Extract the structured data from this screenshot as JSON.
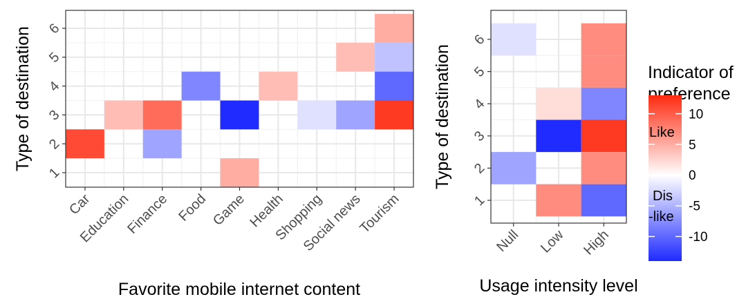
{
  "chart_data": [
    {
      "type": "heatmap",
      "xlabel": "Favorite mobile internet content",
      "ylabel": "Type of destination",
      "x_categories": [
        "Car",
        "Education",
        "Finance",
        "Food",
        "Game",
        "Health",
        "Shopping",
        "Social news",
        "Tourism"
      ],
      "y_categories": [
        "1",
        "2",
        "3",
        "4",
        "5",
        "6"
      ],
      "grid": true,
      "cells": [
        {
          "x": "Car",
          "y": "2",
          "value": 11
        },
        {
          "x": "Education",
          "y": "3",
          "value": 4
        },
        {
          "x": "Finance",
          "y": "3",
          "value": 9
        },
        {
          "x": "Finance",
          "y": "2",
          "value": -6
        },
        {
          "x": "Food",
          "y": "4",
          "value": -8
        },
        {
          "x": "Game",
          "y": "3",
          "value": -14
        },
        {
          "x": "Game",
          "y": "1",
          "value": 5
        },
        {
          "x": "Health",
          "y": "4",
          "value": 4
        },
        {
          "x": "Shopping",
          "y": "3",
          "value": -2
        },
        {
          "x": "Social news",
          "y": "5",
          "value": 4
        },
        {
          "x": "Social news",
          "y": "3",
          "value": -6
        },
        {
          "x": "Tourism",
          "y": "6",
          "value": 5
        },
        {
          "x": "Tourism",
          "y": "5",
          "value": -4
        },
        {
          "x": "Tourism",
          "y": "4",
          "value": -10
        },
        {
          "x": "Tourism",
          "y": "3",
          "value": 12
        }
      ]
    },
    {
      "type": "heatmap",
      "xlabel": "Usage intensity level",
      "ylabel": "Type of destination",
      "x_categories": [
        "Null",
        "Low",
        "High"
      ],
      "y_categories": [
        "1",
        "2",
        "3",
        "4",
        "5",
        "6"
      ],
      "grid": true,
      "cells": [
        {
          "x": "Null",
          "y": "6",
          "value": -2
        },
        {
          "x": "Null",
          "y": "2",
          "value": -6
        },
        {
          "x": "Low",
          "y": "4",
          "value": 2
        },
        {
          "x": "Low",
          "y": "3",
          "value": -14
        },
        {
          "x": "Low",
          "y": "1",
          "value": 7
        },
        {
          "x": "High",
          "y": "6",
          "value": 7
        },
        {
          "x": "High",
          "y": "5",
          "value": 7
        },
        {
          "x": "High",
          "y": "4",
          "value": -8
        },
        {
          "x": "High",
          "y": "3",
          "value": 12
        },
        {
          "x": "High",
          "y": "2",
          "value": 7
        },
        {
          "x": "High",
          "y": "1",
          "value": -10
        }
      ]
    }
  ],
  "legend": {
    "title_line1": "Indicator of",
    "title_line2": "preference",
    "placement": "right",
    "ticks": [
      10,
      5,
      0,
      -5,
      -10
    ],
    "range": [
      -14,
      13
    ],
    "annotation_like": "Like",
    "annotation_dislike_line1": "Dis",
    "annotation_dislike_line2": "-like",
    "colors": {
      "low": "#1f2bff",
      "mid": "#ffffff",
      "high": "#ff2a10"
    }
  }
}
